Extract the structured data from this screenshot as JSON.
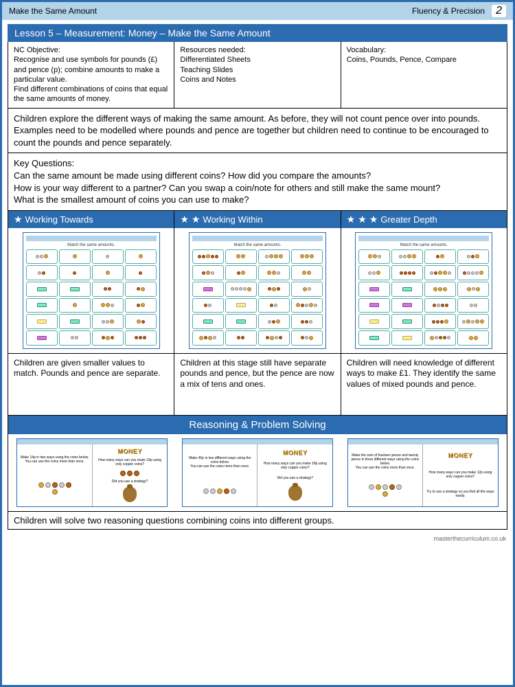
{
  "header": {
    "left": "Make the Same Amount",
    "right": "Fluency & Precision",
    "page": "2"
  },
  "lesson_title": "Lesson 5 – Measurement: Money – Make the Same Amount",
  "info": {
    "objective_label": "NC Objective:",
    "objective_text": "Recognise and use symbols for pounds (£) and pence (p); combine amounts to make a particular value.\nFind different combinations of coins that equal the same amounts of money.",
    "resources_label": "Resources needed:",
    "resources_text": "Differentiated Sheets\nTeaching Slides\nCoins and Notes",
    "vocab_label": "Vocabulary:",
    "vocab_text": "Coins, Pounds, Pence, Compare"
  },
  "intro": "Children explore the different ways of making the same amount. As before, they will not count pence over into pounds.\nExamples need to be modelled where pounds and pence are together but children need to continue to be encouraged to count the pounds and pence separately.",
  "key_q_label": "Key Questions:",
  "key_q_text": "Can the same amount be made using different coins? How did you compare the amounts?\nHow is your way different to a partner? Can you swap a coin/note for others and still make the same mount?\nWhat is the smallest amount of coins you can use to make?",
  "diff": {
    "levels": [
      {
        "stars": 1,
        "title": "Working Towards",
        "desc": "Children are given smaller values to match. Pounds and pence are separate."
      },
      {
        "stars": 2,
        "title": "Working Within",
        "desc": "Children at this stage still have separate pounds and pence, but the pence are now a mix of tens and ones."
      },
      {
        "stars": 3,
        "title": "Greater Depth",
        "desc": "Children will need knowledge of different ways to make £1. They identify the same values of mixed pounds and pence."
      }
    ]
  },
  "ws_title": "Match the same amounts.",
  "rps_title": "Reasoning & Problem Solving",
  "rps": [
    {
      "left": "Make 14p in two ways using the coins below.\nYou can use the coins more than once.",
      "right_q": "How many ways can you make 18p using only copper coins?",
      "right_hint": "Did you use a strategy?"
    },
    {
      "left": "Make 45p in two different ways using the coins below.\nYou can use the coins more than once.",
      "right_q": "How many ways can you make 18p using only copper coins?",
      "right_hint": "Did you use a strategy?"
    },
    {
      "left": "Make the sum of fourteen pence and twenty pence in three different ways using the coins below.\nYou can use the coins more than once.",
      "right_q": "How many ways can you make 12p using only copper coins?",
      "right_hint": "Try to use a strategy so you find all the ways easily."
    }
  ],
  "footer": "Children will solve two reasoning questions combining coins into different groups.",
  "credit": "masterthecurriculum.co.uk",
  "colors": {
    "primary": "#2b6cb0",
    "header_bg": "#b3d4e8"
  }
}
